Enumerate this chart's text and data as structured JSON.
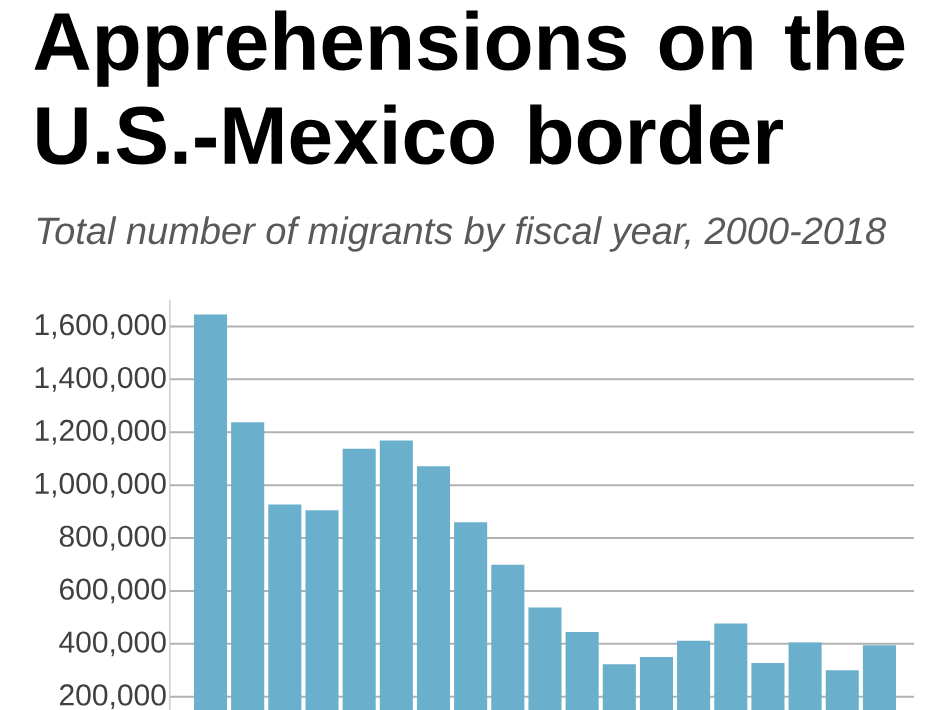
{
  "chart_data": {
    "type": "bar",
    "title": "Apprehensions on the U.S.-Mexico border",
    "subtitle": "Total number of migrants by fiscal year, 2000-2018",
    "categories": [
      null,
      null,
      null,
      null,
      null,
      null,
      null,
      null,
      null,
      null,
      null,
      null,
      null,
      null,
      null,
      null,
      null,
      null,
      null
    ],
    "values": [
      1645000,
      1238000,
      927000,
      905000,
      1138000,
      1169000,
      1071000,
      860000,
      699000,
      537000,
      445000,
      323000,
      350000,
      412000,
      477000,
      328000,
      405000,
      300000,
      395000
    ],
    "color": "#6aafcc",
    "ylim": [
      150000,
      1700000
    ],
    "yticks": [
      {
        "value": 200000,
        "label": "200,000"
      },
      {
        "value": 400000,
        "label": "400,000"
      },
      {
        "value": 600000,
        "label": "600,000"
      },
      {
        "value": 800000,
        "label": "800,000"
      },
      {
        "value": 1000000,
        "label": "1,000,000"
      },
      {
        "value": 1200000,
        "label": "1,200,000"
      },
      {
        "value": 1400000,
        "label": "1,400,000"
      },
      {
        "value": 1600000,
        "label": "1,600,000"
      }
    ],
    "grid": "y"
  }
}
